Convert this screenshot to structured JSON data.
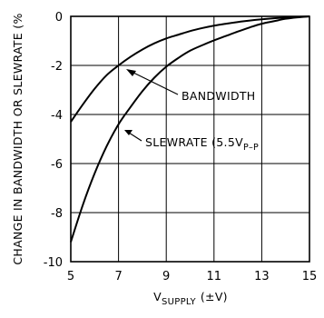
{
  "chart_data": {
    "type": "line",
    "title": "",
    "ylabel": "CHANGE IN BANDWIDTH OR SLEWRATE (%",
    "xlabel": {
      "main": "V",
      "sub": "SUPPLY",
      "unit": "(±V)"
    },
    "xlim": [
      5,
      15
    ],
    "ylim": [
      -10,
      0
    ],
    "xticks": [
      5,
      7,
      9,
      11,
      13,
      15
    ],
    "yticks": [
      0,
      -2,
      -4,
      -6,
      -8,
      -10
    ],
    "grid": true,
    "series": [
      {
        "name": "BANDWIDTH",
        "x": [
          5,
          5.5,
          6,
          6.5,
          7,
          7.5,
          8,
          8.5,
          9,
          9.5,
          10,
          10.5,
          11,
          11.5,
          12,
          12.5,
          13,
          13.5,
          14,
          14.5,
          15
        ],
        "y": [
          -4.3,
          -3.6,
          -2.95,
          -2.4,
          -2.0,
          -1.65,
          -1.35,
          -1.1,
          -0.9,
          -0.75,
          -0.6,
          -0.48,
          -0.38,
          -0.3,
          -0.23,
          -0.17,
          -0.12,
          -0.08,
          -0.05,
          -0.02,
          0
        ]
      },
      {
        "name": "SLEWRATE (5.5V",
        "x": [
          5,
          5.5,
          6,
          6.5,
          7,
          7.5,
          8,
          8.5,
          9,
          9.5,
          10,
          10.5,
          11,
          11.5,
          12,
          12.5,
          13,
          13.5,
          14,
          14.5,
          15
        ],
        "y": [
          -9.2,
          -7.7,
          -6.4,
          -5.3,
          -4.4,
          -3.7,
          -3.05,
          -2.5,
          -2.05,
          -1.7,
          -1.4,
          -1.18,
          -0.98,
          -0.8,
          -0.62,
          -0.45,
          -0.3,
          -0.2,
          -0.1,
          -0.04,
          0
        ]
      }
    ],
    "annotations": [
      {
        "text": "BANDWIDTH"
      },
      {
        "text": "SLEWRATE (5.5V",
        "sub": "P–P"
      }
    ]
  }
}
